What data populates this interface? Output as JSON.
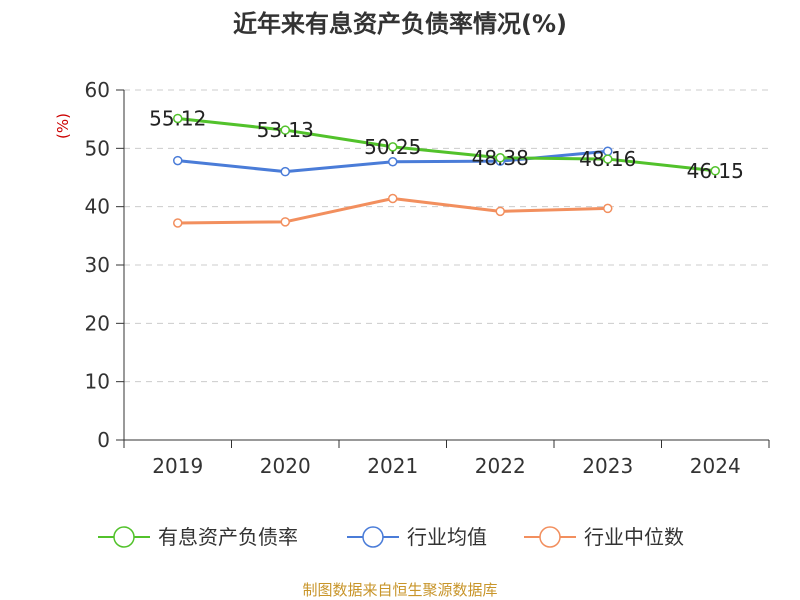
{
  "chart_data": {
    "type": "line",
    "title": "近年来有息资产负债率情况(%)",
    "ylabel": "(%)",
    "xlabel": "",
    "ylim": [
      0,
      60
    ],
    "yticks": [
      "0",
      "10",
      "20",
      "30",
      "40",
      "50",
      "60"
    ],
    "categories": [
      "2019",
      "2020",
      "2021",
      "2022",
      "2023",
      "2024"
    ],
    "grid": true,
    "legend_position": "bottom",
    "series": [
      {
        "name": "有息资产负债率",
        "color": "#52c22b",
        "values": [
          55.12,
          53.13,
          50.25,
          48.38,
          48.16,
          46.15
        ],
        "labels": [
          "55.12",
          "53.13",
          "50.25",
          "48.38",
          "48.16",
          "46.15"
        ]
      },
      {
        "name": "行业均值",
        "color": "#4a7cd8",
        "values": [
          47.9,
          46.0,
          47.7,
          47.8,
          49.5,
          null
        ]
      },
      {
        "name": "行业中位数",
        "color": "#f28f5e",
        "values": [
          37.2,
          37.4,
          41.4,
          39.2,
          39.7,
          null
        ]
      }
    ],
    "source": "制图数据来自恒生聚源数据库"
  }
}
